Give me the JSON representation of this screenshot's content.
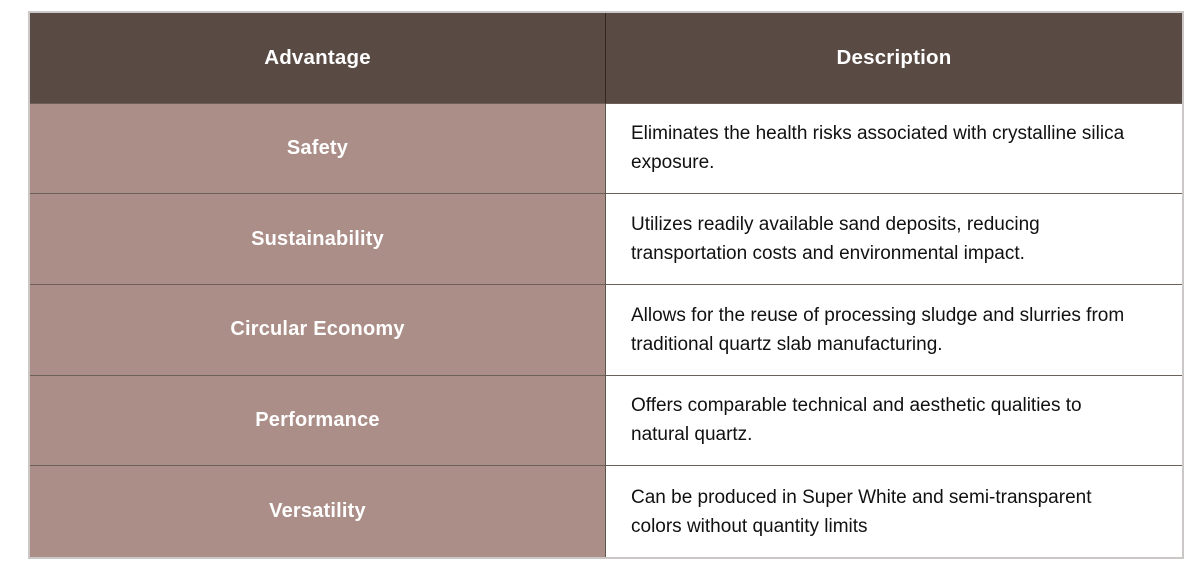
{
  "table": {
    "columns": {
      "advantage": "Advantage",
      "description": "Description"
    },
    "rows": [
      {
        "advantage": "Safety",
        "description": "Eliminates the health risks associated with crystalline silica exposure."
      },
      {
        "advantage": "Sustainability",
        "description": "Utilizes readily available sand deposits, reducing transportation costs and environmental impact."
      },
      {
        "advantage": "Circular Economy",
        "description": "Allows for the reuse of processing sludge and slurries from traditional quartz slab manufacturing."
      },
      {
        "advantage": "Performance",
        "description": "Offers comparable technical and aesthetic qualities to natural quartz."
      },
      {
        "advantage": "Versatility",
        "description": "Can be produced in Super White and semi-transparent colors without quantity limits"
      }
    ],
    "colors": {
      "header_bg": "#594a44",
      "advantage_bg": "#ab8e88",
      "header_text": "#ffffff",
      "body_text": "#111111",
      "outer_border": "#cac7c6",
      "grid_line": "#6b6159"
    }
  }
}
